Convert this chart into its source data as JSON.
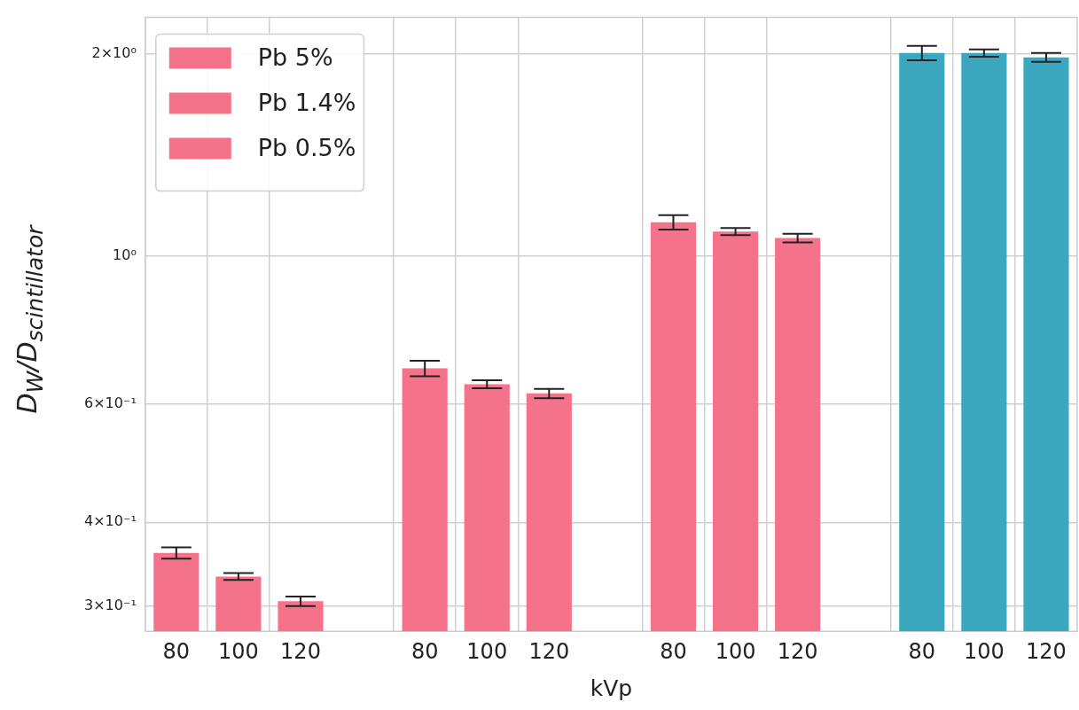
{
  "chart_data": {
    "type": "bar",
    "xlabel": "kVp",
    "ylabel": "D$_{W}$/D$_{scintillator}$",
    "categories": [
      "80",
      "100",
      "120",
      null,
      "80",
      "100",
      "120",
      null,
      "80",
      "100",
      "120",
      null,
      "80",
      "100",
      "120"
    ],
    "log": "y",
    "ylim": [
      0.275,
      2.27
    ],
    "yticks": [
      {
        "value": 0.3,
        "label": "3×10⁻¹"
      },
      {
        "value": 0.4,
        "label": "4×10⁻¹"
      },
      {
        "value": 0.6,
        "label": "6×10⁻¹"
      },
      {
        "value": 1,
        "label": "10⁰"
      },
      {
        "value": 2,
        "label": "2×10⁰"
      }
    ],
    "grid": true,
    "legend": "top left",
    "series": [
      {
        "name": "Pb 5%",
        "color": "#f5738a",
        "values": [
          0.36,
          0.332,
          0.305,
          null,
          null,
          null,
          null,
          null,
          null,
          null,
          null,
          null,
          null,
          null,
          null
        ],
        "errors": [
          0.007,
          0.004,
          0.005,
          null,
          null,
          null,
          null,
          null,
          null,
          null,
          null,
          null,
          null,
          null,
          null
        ]
      },
      {
        "name": "Pb 1.4%",
        "color": "#f5738a",
        "values": [
          null,
          null,
          null,
          null,
          0.679,
          0.643,
          0.623,
          null,
          null,
          null,
          null,
          null,
          null,
          null,
          null
        ],
        "errors": [
          null,
          null,
          null,
          null,
          0.018,
          0.009,
          0.01,
          null,
          null,
          null,
          null,
          null,
          null,
          null,
          null
        ]
      },
      {
        "name": "Pb 0.5%",
        "color": "#f5738a",
        "values": [
          null,
          null,
          null,
          null,
          null,
          null,
          null,
          null,
          1.122,
          1.087,
          1.063,
          null,
          null,
          null,
          null
        ],
        "errors": [
          null,
          null,
          null,
          null,
          null,
          null,
          null,
          null,
          0.028,
          0.013,
          0.016,
          null,
          null,
          null,
          null
        ]
      },
      {
        "color": "#3ba8bf",
        "values": [
          null,
          null,
          null,
          null,
          null,
          null,
          null,
          null,
          null,
          null,
          null,
          null,
          2.008,
          2.008,
          1.978
        ],
        "errors": [
          null,
          null,
          null,
          null,
          null,
          null,
          null,
          null,
          null,
          null,
          null,
          null,
          0.05,
          0.025,
          0.03
        ]
      }
    ]
  }
}
